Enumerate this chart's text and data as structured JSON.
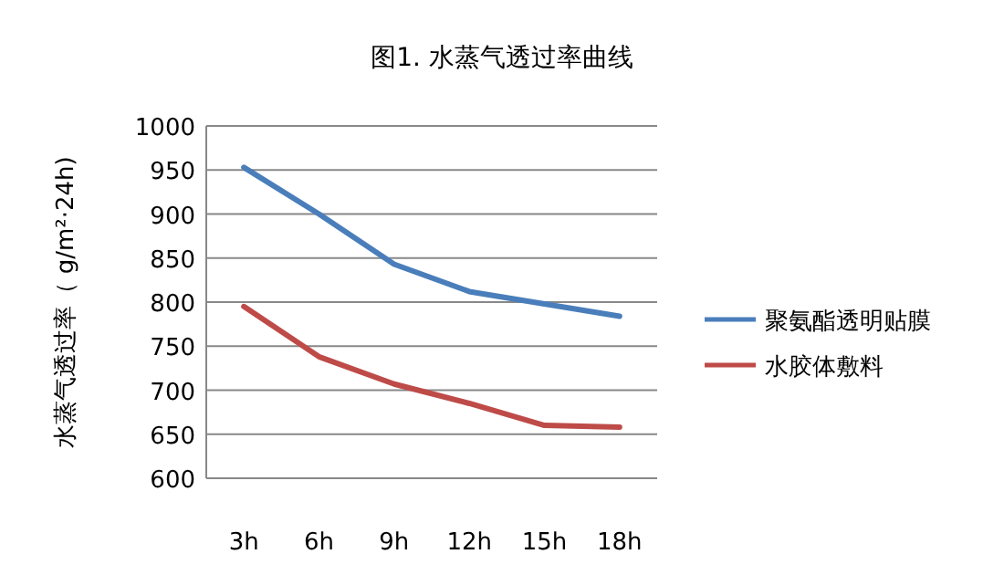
{
  "chart_data": {
    "type": "line",
    "title": "图1. 水蒸气透过率曲线",
    "ylabel": "水蒸气透过率（ g/m²·24h)",
    "categories": [
      "3h",
      "6h",
      "9h",
      "12h",
      "15h",
      "18h"
    ],
    "series": [
      {
        "name": "聚氨酯透明贴膜",
        "color": "#4a7ebb",
        "values": [
          953,
          900,
          843,
          812,
          798,
          784
        ]
      },
      {
        "name": "水胶体敷料",
        "color": "#be4b48",
        "values": [
          795,
          738,
          707,
          685,
          660,
          658
        ]
      }
    ],
    "ylim": [
      600,
      1000
    ],
    "yticks": [
      600,
      650,
      700,
      750,
      800,
      850,
      900,
      950,
      1000
    ],
    "grid": "y",
    "legend": "right",
    "marker": "none",
    "line_style": "solid"
  }
}
